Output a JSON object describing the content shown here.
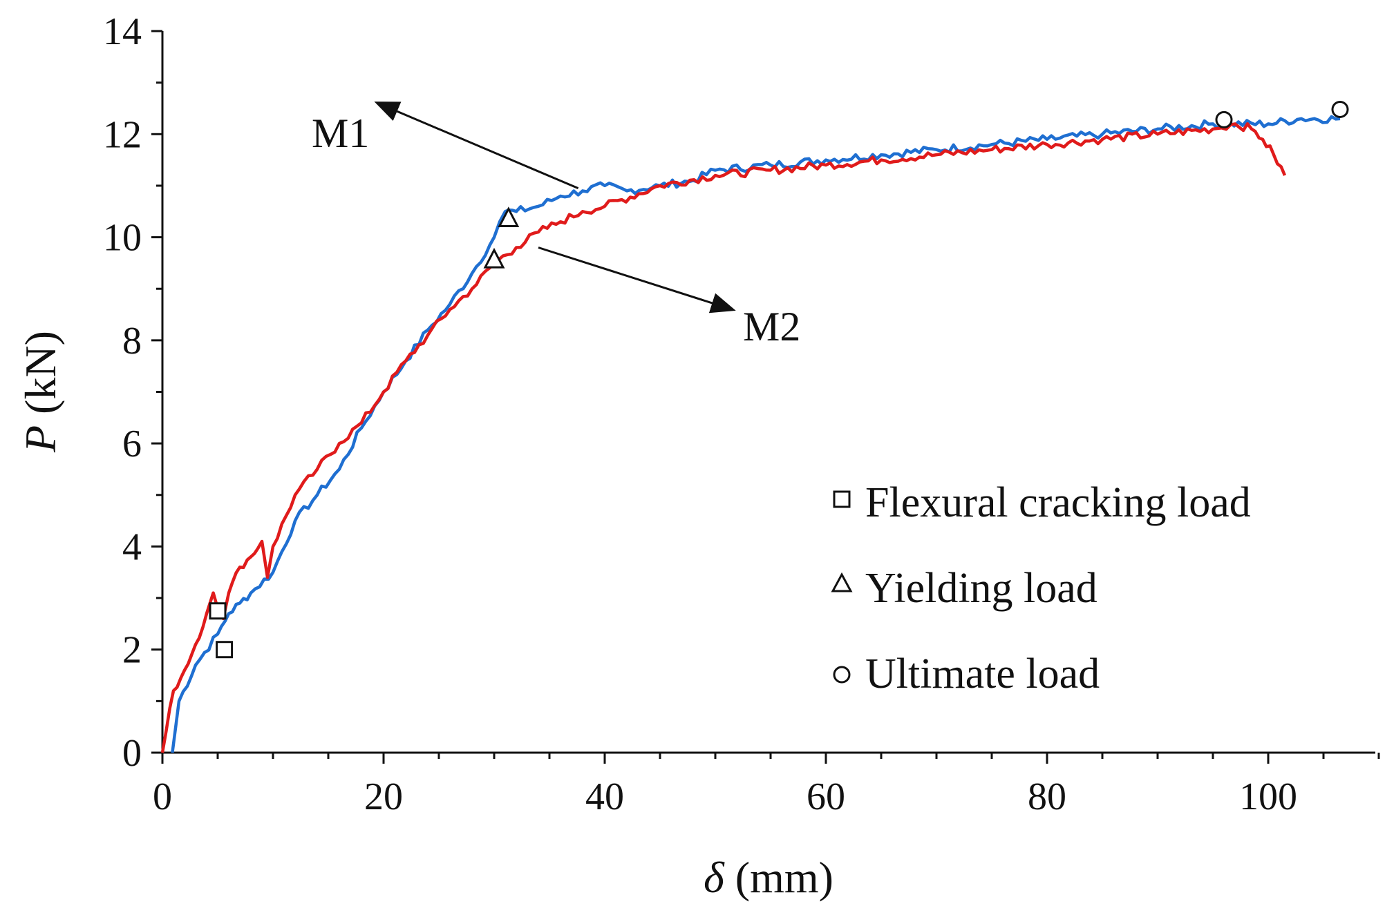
{
  "chart_data": {
    "type": "line",
    "title": "",
    "xlabel": {
      "symbol": "δ",
      "unit": " (mm)"
    },
    "ylabel": {
      "symbol": "P",
      "unit": " (kN)"
    },
    "xlim": [
      0,
      110
    ],
    "ylim": [
      0,
      14
    ],
    "xticks": [
      0,
      20,
      40,
      60,
      80,
      100
    ],
    "yticks": [
      0,
      2,
      4,
      6,
      8,
      10,
      12,
      14
    ],
    "x_minor_step": 5,
    "y_minor_step": 1,
    "grid": false,
    "series": [
      {
        "name": "M1",
        "color": "#1f6fd1",
        "x": [
          0.9,
          1.5,
          3,
          5,
          6,
          7,
          8,
          10,
          12,
          14,
          16,
          18,
          20,
          22,
          24,
          26,
          28,
          30,
          30.5,
          31,
          32,
          34,
          36,
          38,
          40,
          42,
          45,
          48,
          50,
          55,
          60,
          65,
          70,
          75,
          80,
          85,
          90,
          95,
          100,
          103,
          106.5
        ],
        "y": [
          0,
          1.0,
          1.7,
          2.3,
          2.7,
          2.9,
          3.1,
          3.5,
          4.5,
          5.0,
          5.5,
          6.3,
          7.0,
          7.6,
          8.2,
          8.7,
          9.3,
          10.0,
          10.3,
          10.5,
          10.5,
          10.6,
          10.8,
          10.9,
          11.0,
          10.9,
          11.0,
          11.1,
          11.3,
          11.4,
          11.5,
          11.6,
          11.7,
          11.8,
          11.9,
          12.0,
          12.1,
          12.2,
          12.2,
          12.3,
          12.3
        ]
      },
      {
        "name": "M2",
        "color": "#e01b1b",
        "x": [
          0,
          1,
          2,
          3,
          4,
          4.6,
          5,
          5.5,
          6,
          7,
          8,
          9,
          9.5,
          10,
          12,
          14,
          16,
          18,
          20,
          22,
          24,
          26,
          28,
          30,
          32,
          34,
          36,
          38,
          40,
          45,
          50,
          55,
          60,
          65,
          70,
          75,
          80,
          85,
          90,
          95,
          97,
          98.5,
          99.5,
          100.5,
          101.5
        ],
        "y": [
          0,
          1.2,
          1.6,
          2.1,
          2.7,
          3.1,
          2.8,
          2.6,
          3.1,
          3.6,
          3.8,
          4.1,
          3.4,
          4.0,
          5.0,
          5.5,
          6.0,
          6.4,
          7.0,
          7.6,
          8.1,
          8.6,
          9.0,
          9.5,
          9.8,
          10.1,
          10.3,
          10.5,
          10.6,
          11.0,
          11.2,
          11.3,
          11.4,
          11.5,
          11.6,
          11.7,
          11.8,
          11.9,
          12.0,
          12.1,
          12.2,
          12.1,
          11.9,
          11.6,
          11.2
        ]
      }
    ],
    "markers": [
      {
        "kind": "square",
        "x": 5.0,
        "y": 2.75
      },
      {
        "kind": "square",
        "x": 5.6,
        "y": 2.0
      },
      {
        "kind": "triangle",
        "x": 31.3,
        "y": 10.35
      },
      {
        "kind": "triangle",
        "x": 30.0,
        "y": 9.55
      },
      {
        "kind": "circle",
        "x": 96.0,
        "y": 12.28
      },
      {
        "kind": "circle",
        "x": 106.5,
        "y": 12.48
      }
    ],
    "annotations": [
      {
        "text": "M1",
        "label_x": 13.5,
        "label_y": 11.75,
        "arrow_from": [
          37.6,
          10.95
        ],
        "arrow_to": [
          19.5,
          12.6
        ]
      },
      {
        "text": "M2",
        "label_x": 52.5,
        "label_y": 8.0,
        "arrow_from": [
          34.0,
          9.8
        ],
        "arrow_to": [
          51.5,
          8.6
        ]
      }
    ],
    "legend": {
      "position": "bottom-right",
      "entries": [
        {
          "marker": "square",
          "label": "Flexural cracking load"
        },
        {
          "marker": "triangle",
          "label": "Yielding load"
        },
        {
          "marker": "circle",
          "label": "Ultimate load"
        }
      ]
    }
  }
}
